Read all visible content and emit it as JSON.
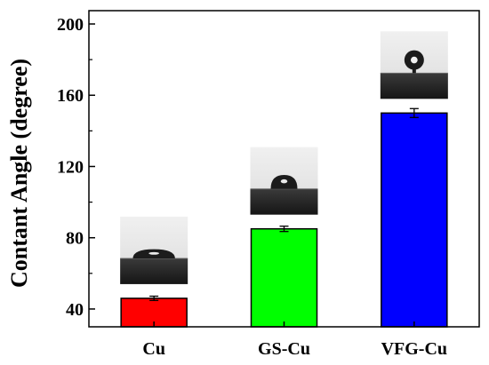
{
  "chart_data": {
    "type": "bar",
    "title": "",
    "xlabel": "",
    "ylabel": "Contant Angle (degree)",
    "categories": [
      "Cu",
      "GS-Cu",
      "VFG-Cu"
    ],
    "values": [
      46,
      85,
      150
    ],
    "errors": [
      1.2,
      1.5,
      2.5
    ],
    "ylim": [
      30,
      200
    ],
    "yticks": [
      40,
      80,
      120,
      160,
      200
    ],
    "colors": [
      "#ff0000",
      "#00ff00",
      "#0000ff"
    ],
    "grid": false,
    "legend": "none",
    "insets": [
      "droplet-image",
      "droplet-image",
      "droplet-image"
    ]
  }
}
